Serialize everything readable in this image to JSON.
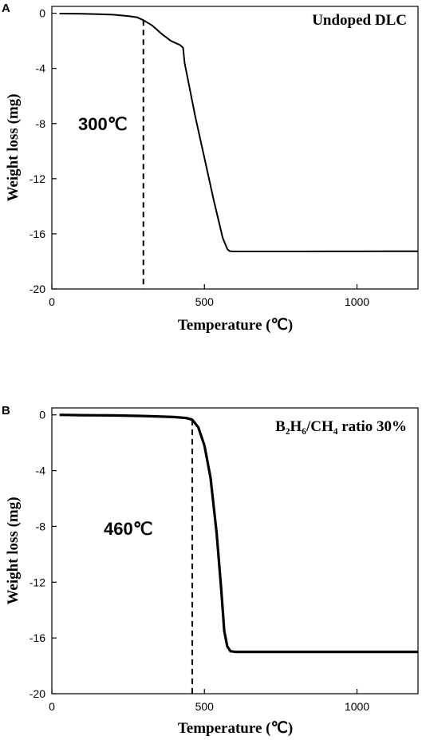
{
  "chart_data": [
    {
      "type": "line",
      "panel": "A",
      "label": "Undoped DLC",
      "xlabel": "Temperature (℃)",
      "ylabel": "Weight loss (mg)",
      "xlim": [
        0,
        1200
      ],
      "ylim": [
        -20,
        0.5
      ],
      "xticks": [
        "0",
        "500",
        "1000"
      ],
      "yticks": [
        "0",
        "-4",
        "-8",
        "-12",
        "-16",
        "-20"
      ],
      "annotation": {
        "text": "300℃",
        "x": 300
      },
      "series": [
        {
          "line_width": "thin",
          "x": [
            25,
            100,
            150,
            200,
            250,
            280,
            300,
            330,
            360,
            390,
            420,
            430,
            435,
            445,
            470,
            500,
            530,
            560,
            575,
            582,
            590,
            620,
            700,
            800,
            900,
            1000,
            1100,
            1200
          ],
          "y": [
            -0.02,
            -0.04,
            -0.06,
            -0.1,
            -0.2,
            -0.3,
            -0.5,
            -0.9,
            -1.5,
            -2.0,
            -2.3,
            -2.5,
            -3.6,
            -4.7,
            -7.5,
            -10.5,
            -13.5,
            -16.3,
            -17.1,
            -17.25,
            -17.27,
            -17.28,
            -17.28,
            -17.28,
            -17.27,
            -17.27,
            -17.26,
            -17.26
          ]
        }
      ]
    },
    {
      "type": "line",
      "panel": "B",
      "label": "B₂H₆/CH₄ ratio 30%",
      "xlabel": "Temperature (℃)",
      "ylabel": "Weight loss (mg)",
      "xlim": [
        0,
        1200
      ],
      "ylim": [
        -20,
        0.5
      ],
      "xticks": [
        "0",
        "500",
        "1000"
      ],
      "yticks": [
        "0",
        "-4",
        "-8",
        "-12",
        "-16",
        "-20"
      ],
      "annotation": {
        "text": "460℃",
        "x": 460
      },
      "series": [
        {
          "line_width": "thick",
          "x": [
            25,
            100,
            200,
            300,
            400,
            440,
            460,
            480,
            500,
            520,
            540,
            555,
            565,
            575,
            585,
            600,
            650,
            700,
            800,
            900,
            1000,
            1100,
            1200
          ],
          "y": [
            0.0,
            -0.02,
            -0.04,
            -0.08,
            -0.15,
            -0.22,
            -0.35,
            -0.9,
            -2.2,
            -4.5,
            -8.5,
            -12.5,
            -15.5,
            -16.6,
            -16.95,
            -17.0,
            -17.0,
            -17.0,
            -17.0,
            -17.0,
            -17.0,
            -17.0,
            -17.0
          ]
        }
      ]
    }
  ]
}
